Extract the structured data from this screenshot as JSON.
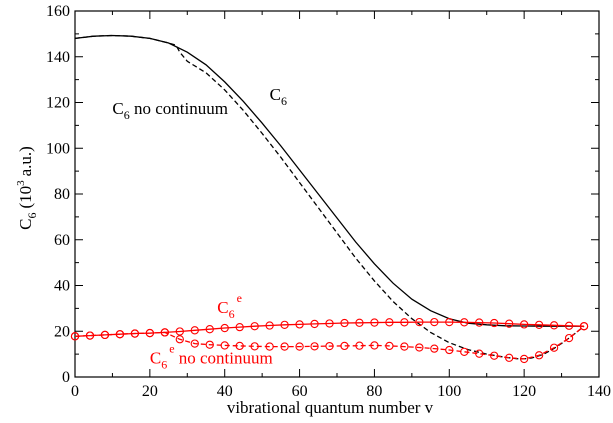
{
  "chart_data": {
    "type": "line",
    "xlabel": "vibrational quantum number v",
    "ylabel_main": "C",
    "ylabel_sub": "6",
    "ylabel_rest_open": "(10",
    "ylabel_sup": "3",
    "ylabel_rest_close": "a.u.)",
    "xlim": [
      0,
      140
    ],
    "ylim": [
      0,
      160
    ],
    "xticks": [
      0,
      20,
      40,
      60,
      80,
      100,
      120,
      140
    ],
    "yticks": [
      0,
      20,
      40,
      60,
      80,
      100,
      120,
      140,
      160
    ],
    "series": [
      {
        "color": "#000000",
        "style": "solid",
        "markers": false,
        "x": [
          0,
          5,
          10,
          15,
          20,
          25,
          30,
          35,
          40,
          45,
          50,
          55,
          60,
          65,
          70,
          75,
          80,
          85,
          90,
          95,
          100,
          105,
          110,
          115,
          120,
          125,
          130,
          136
        ],
        "y": [
          148,
          149,
          149.3,
          149,
          148,
          146,
          142,
          136.5,
          129,
          120.5,
          111,
          101,
          90.5,
          80,
          69.5,
          59,
          49.5,
          41,
          34,
          29,
          25.5,
          23.5,
          22.8,
          22.4,
          22.3,
          22.2,
          22.2,
          22.2
        ]
      },
      {
        "color": "#000000",
        "style": "dashed",
        "markers": false,
        "x": [
          0,
          5,
          10,
          15,
          20,
          25,
          27,
          28,
          30,
          35,
          40,
          45,
          50,
          55,
          60,
          65,
          70,
          75,
          80,
          85,
          90,
          95,
          100,
          105,
          110,
          115,
          118,
          120,
          122,
          125,
          128,
          131,
          134,
          136
        ],
        "y": [
          148,
          149,
          149.3,
          149,
          148,
          146,
          145,
          142,
          138,
          133,
          125.5,
          116.5,
          106.5,
          96,
          85,
          74,
          63,
          52,
          42,
          33,
          25.5,
          19.5,
          15,
          12,
          10,
          8.6,
          8.0,
          7.9,
          8.3,
          9.8,
          12.5,
          15.8,
          19.5,
          22.2
        ]
      },
      {
        "color": "#ff0000",
        "style": "solid",
        "markers": true,
        "x": [
          0,
          4,
          8,
          12,
          16,
          20,
          24,
          28,
          32,
          36,
          40,
          44,
          48,
          52,
          56,
          60,
          64,
          68,
          72,
          76,
          80,
          84,
          88,
          92,
          96,
          100,
          104,
          108,
          112,
          116,
          120,
          124,
          128,
          132,
          136
        ],
        "y": [
          17.8,
          18.1,
          18.4,
          18.7,
          19.0,
          19.2,
          19.5,
          19.9,
          20.4,
          20.9,
          21.4,
          21.8,
          22.2,
          22.5,
          22.8,
          23.0,
          23.2,
          23.4,
          23.6,
          23.7,
          23.8,
          23.9,
          23.9,
          24.0,
          24.0,
          24.0,
          23.9,
          23.8,
          23.6,
          23.3,
          23.0,
          22.8,
          22.6,
          22.4,
          22.2
        ]
      },
      {
        "color": "#ff0000",
        "style": "dashed",
        "markers": true,
        "x": [
          0,
          4,
          8,
          12,
          16,
          20,
          24,
          28,
          32,
          36,
          40,
          44,
          48,
          52,
          56,
          60,
          64,
          68,
          72,
          76,
          80,
          84,
          88,
          92,
          96,
          100,
          104,
          108,
          112,
          116,
          120,
          124,
          128,
          132,
          136
        ],
        "y": [
          17.8,
          18.1,
          18.4,
          18.7,
          19.0,
          19.2,
          19.5,
          16.5,
          14.6,
          14.1,
          13.8,
          13.6,
          13.4,
          13.3,
          13.3,
          13.3,
          13.4,
          13.5,
          13.6,
          13.7,
          13.8,
          13.6,
          13.3,
          12.9,
          12.4,
          11.8,
          11.0,
          10.2,
          9.3,
          8.4,
          7.9,
          9.5,
          12.8,
          17.0,
          22.2
        ]
      }
    ],
    "annotations": [
      {
        "text": "C",
        "sub": "6",
        "rest": "",
        "sup": "",
        "color": "#000000",
        "x": 52,
        "y": 121
      },
      {
        "text": "C",
        "sub": "6",
        "rest": " no continuum",
        "sup": "",
        "color": "#000000",
        "x": 10,
        "y": 115
      },
      {
        "text": "C",
        "sub": "6",
        "rest": "",
        "sup": "e",
        "color": "#ff0000",
        "x": 38,
        "y": 28
      },
      {
        "text": "C",
        "sub": "6",
        "rest": " no continuum",
        "sup": "e",
        "color": "#ff0000",
        "x": 20,
        "y": 6
      }
    ]
  }
}
